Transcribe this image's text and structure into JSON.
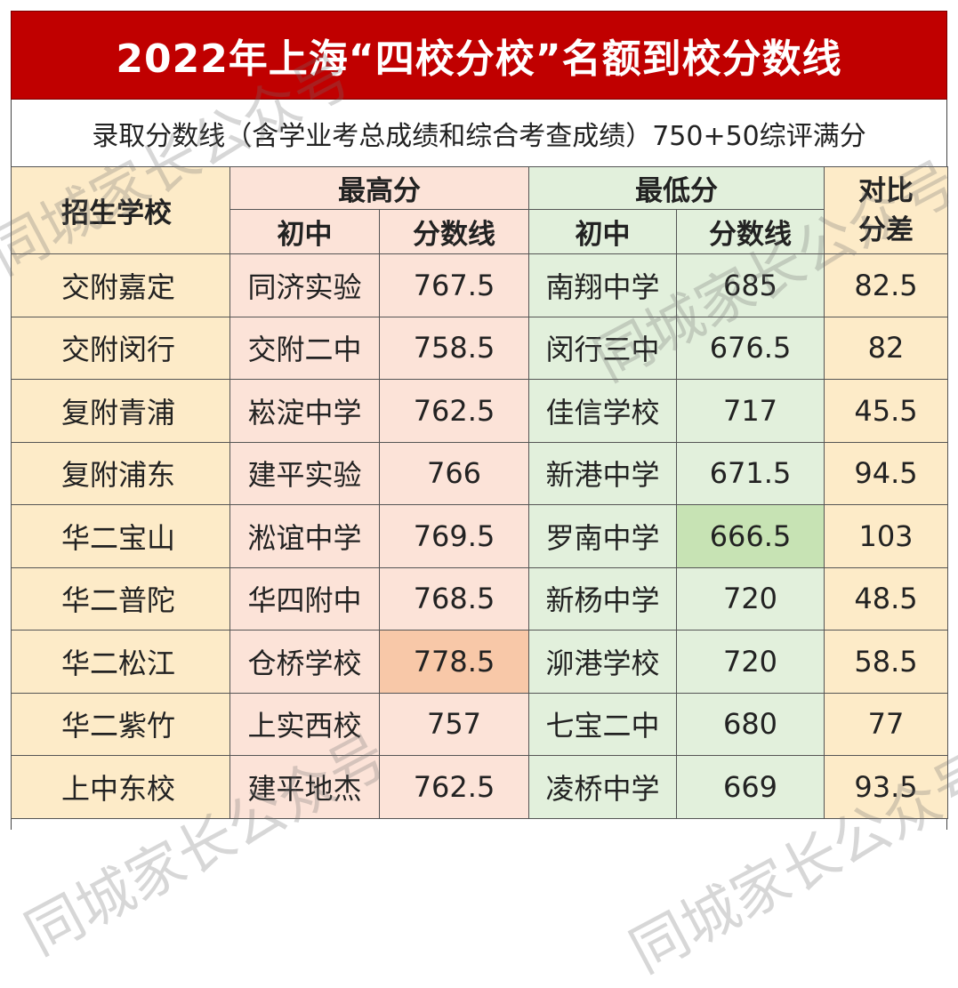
{
  "title": "2022年上海“四校分校”名额到校分数线",
  "subtitle": "录取分数线（含学业考总成绩和综合考查成绩）750+50综评满分",
  "headers": {
    "school": "招生学校",
    "highest": "最高分",
    "lowest": "最低分",
    "diff": "对比分差",
    "middle_school": "初中",
    "score_line": "分数线"
  },
  "rows": [
    {
      "school": "交附嘉定",
      "high_ms": "同济实验",
      "high_score": "767.5",
      "low_ms": "南翔中学",
      "low_score": "685",
      "diff": "82.5"
    },
    {
      "school": "交附闵行",
      "high_ms": "交附二中",
      "high_score": "758.5",
      "low_ms": "闵行三中",
      "low_score": "676.5",
      "diff": "82"
    },
    {
      "school": "复附青浦",
      "high_ms": "崧淀中学",
      "high_score": "762.5",
      "low_ms": "佳信学校",
      "low_score": "717",
      "diff": "45.5"
    },
    {
      "school": "复附浦东",
      "high_ms": "建平实验",
      "high_score": "766",
      "low_ms": "新港中学",
      "low_score": "671.5",
      "diff": "94.5"
    },
    {
      "school": "华二宝山",
      "high_ms": "淞谊中学",
      "high_score": "769.5",
      "low_ms": "罗南中学",
      "low_score": "666.5",
      "diff": "103"
    },
    {
      "school": "华二普陀",
      "high_ms": "华四附中",
      "high_score": "768.5",
      "low_ms": "新杨中学",
      "low_score": "720",
      "diff": "48.5"
    },
    {
      "school": "华二松江",
      "high_ms": "仓桥学校",
      "high_score": "778.5",
      "low_ms": "泖港学校",
      "low_score": "720",
      "diff": "58.5"
    },
    {
      "school": "华二紫竹",
      "high_ms": "上实西校",
      "high_score": "757",
      "low_ms": "七宝二中",
      "low_score": "680",
      "diff": "77"
    },
    {
      "school": "上中东校",
      "high_ms": "建平地杰",
      "high_score": "762.5",
      "low_ms": "凌桥中学",
      "low_score": "669",
      "diff": "93.5"
    }
  ],
  "watermark": "同城家长公众号",
  "colors": {
    "title_bg": "#c00000",
    "school_bg": "#fdebc8",
    "high_bg": "#fce3d8",
    "low_bg": "#e2f0dc",
    "max_highlight": "#f8c8a8",
    "min_highlight": "#c7e3b4"
  }
}
